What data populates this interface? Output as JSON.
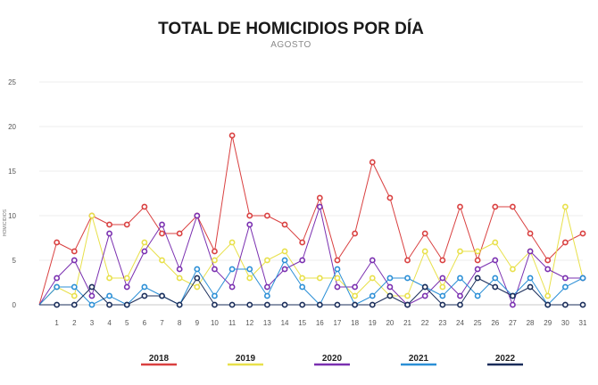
{
  "chart_data": {
    "type": "line",
    "title": "TOTAL DE HOMICIDIOS POR DÍA",
    "subtitle": "AGOSTO",
    "ylabel": "HOMICIDIOS",
    "xlabel": "",
    "ylim": [
      0,
      25
    ],
    "yticks": [
      0,
      5,
      10,
      15,
      20,
      25
    ],
    "x": [
      0,
      1,
      2,
      3,
      4,
      5,
      6,
      7,
      8,
      9,
      10,
      11,
      12,
      13,
      14,
      15,
      16,
      17,
      18,
      19,
      20,
      21,
      22,
      23,
      24,
      25,
      26,
      27,
      28,
      29,
      30,
      31
    ],
    "x_tick_labels": [
      "1",
      "2",
      "3",
      "4",
      "5",
      "6",
      "7",
      "8",
      "9",
      "10",
      "11",
      "12",
      "13",
      "14",
      "15",
      "16",
      "17",
      "18",
      "19",
      "20",
      "21",
      "22",
      "23",
      "24",
      "25",
      "26",
      "27",
      "28",
      "29",
      "30",
      "31"
    ],
    "grid": "horizontal",
    "legend_position": "bottom",
    "series": [
      {
        "name": "2018",
        "color": "#d94040",
        "values": [
          0,
          7,
          6,
          10,
          9,
          9,
          11,
          8,
          8,
          10,
          6,
          19,
          10,
          10,
          9,
          7,
          12,
          5,
          8,
          16,
          12,
          5,
          8,
          5,
          11,
          5,
          11,
          11,
          8,
          5,
          7,
          8
        ]
      },
      {
        "name": "2019",
        "color": "#e8e04a",
        "values": [
          0,
          2,
          1,
          10,
          3,
          3,
          7,
          5,
          3,
          2,
          5,
          7,
          3,
          5,
          6,
          3,
          3,
          3,
          1,
          3,
          1,
          1,
          6,
          2,
          6,
          6,
          7,
          4,
          6,
          1,
          11,
          3
        ]
      },
      {
        "name": "2020",
        "color": "#7a2fb0",
        "values": [
          0,
          3,
          5,
          1,
          8,
          2,
          6,
          9,
          4,
          10,
          4,
          2,
          9,
          2,
          4,
          5,
          11,
          2,
          2,
          5,
          2,
          0,
          1,
          3,
          1,
          4,
          5,
          0,
          6,
          4,
          3,
          3
        ]
      },
      {
        "name": "2021",
        "color": "#2b8fd6",
        "values": [
          0,
          2,
          2,
          0,
          1,
          0,
          2,
          1,
          0,
          4,
          1,
          4,
          4,
          1,
          5,
          2,
          0,
          4,
          0,
          1,
          3,
          3,
          2,
          1,
          3,
          1,
          3,
          1,
          3,
          0,
          2,
          3
        ]
      },
      {
        "name": "2022",
        "color": "#1a2d5a",
        "values": [
          0,
          0,
          0,
          2,
          0,
          0,
          1,
          1,
          0,
          3,
          0,
          0,
          0,
          0,
          0,
          0,
          0,
          0,
          0,
          0,
          1,
          0,
          2,
          0,
          0,
          3,
          2,
          1,
          2,
          0,
          0,
          0
        ]
      }
    ]
  }
}
